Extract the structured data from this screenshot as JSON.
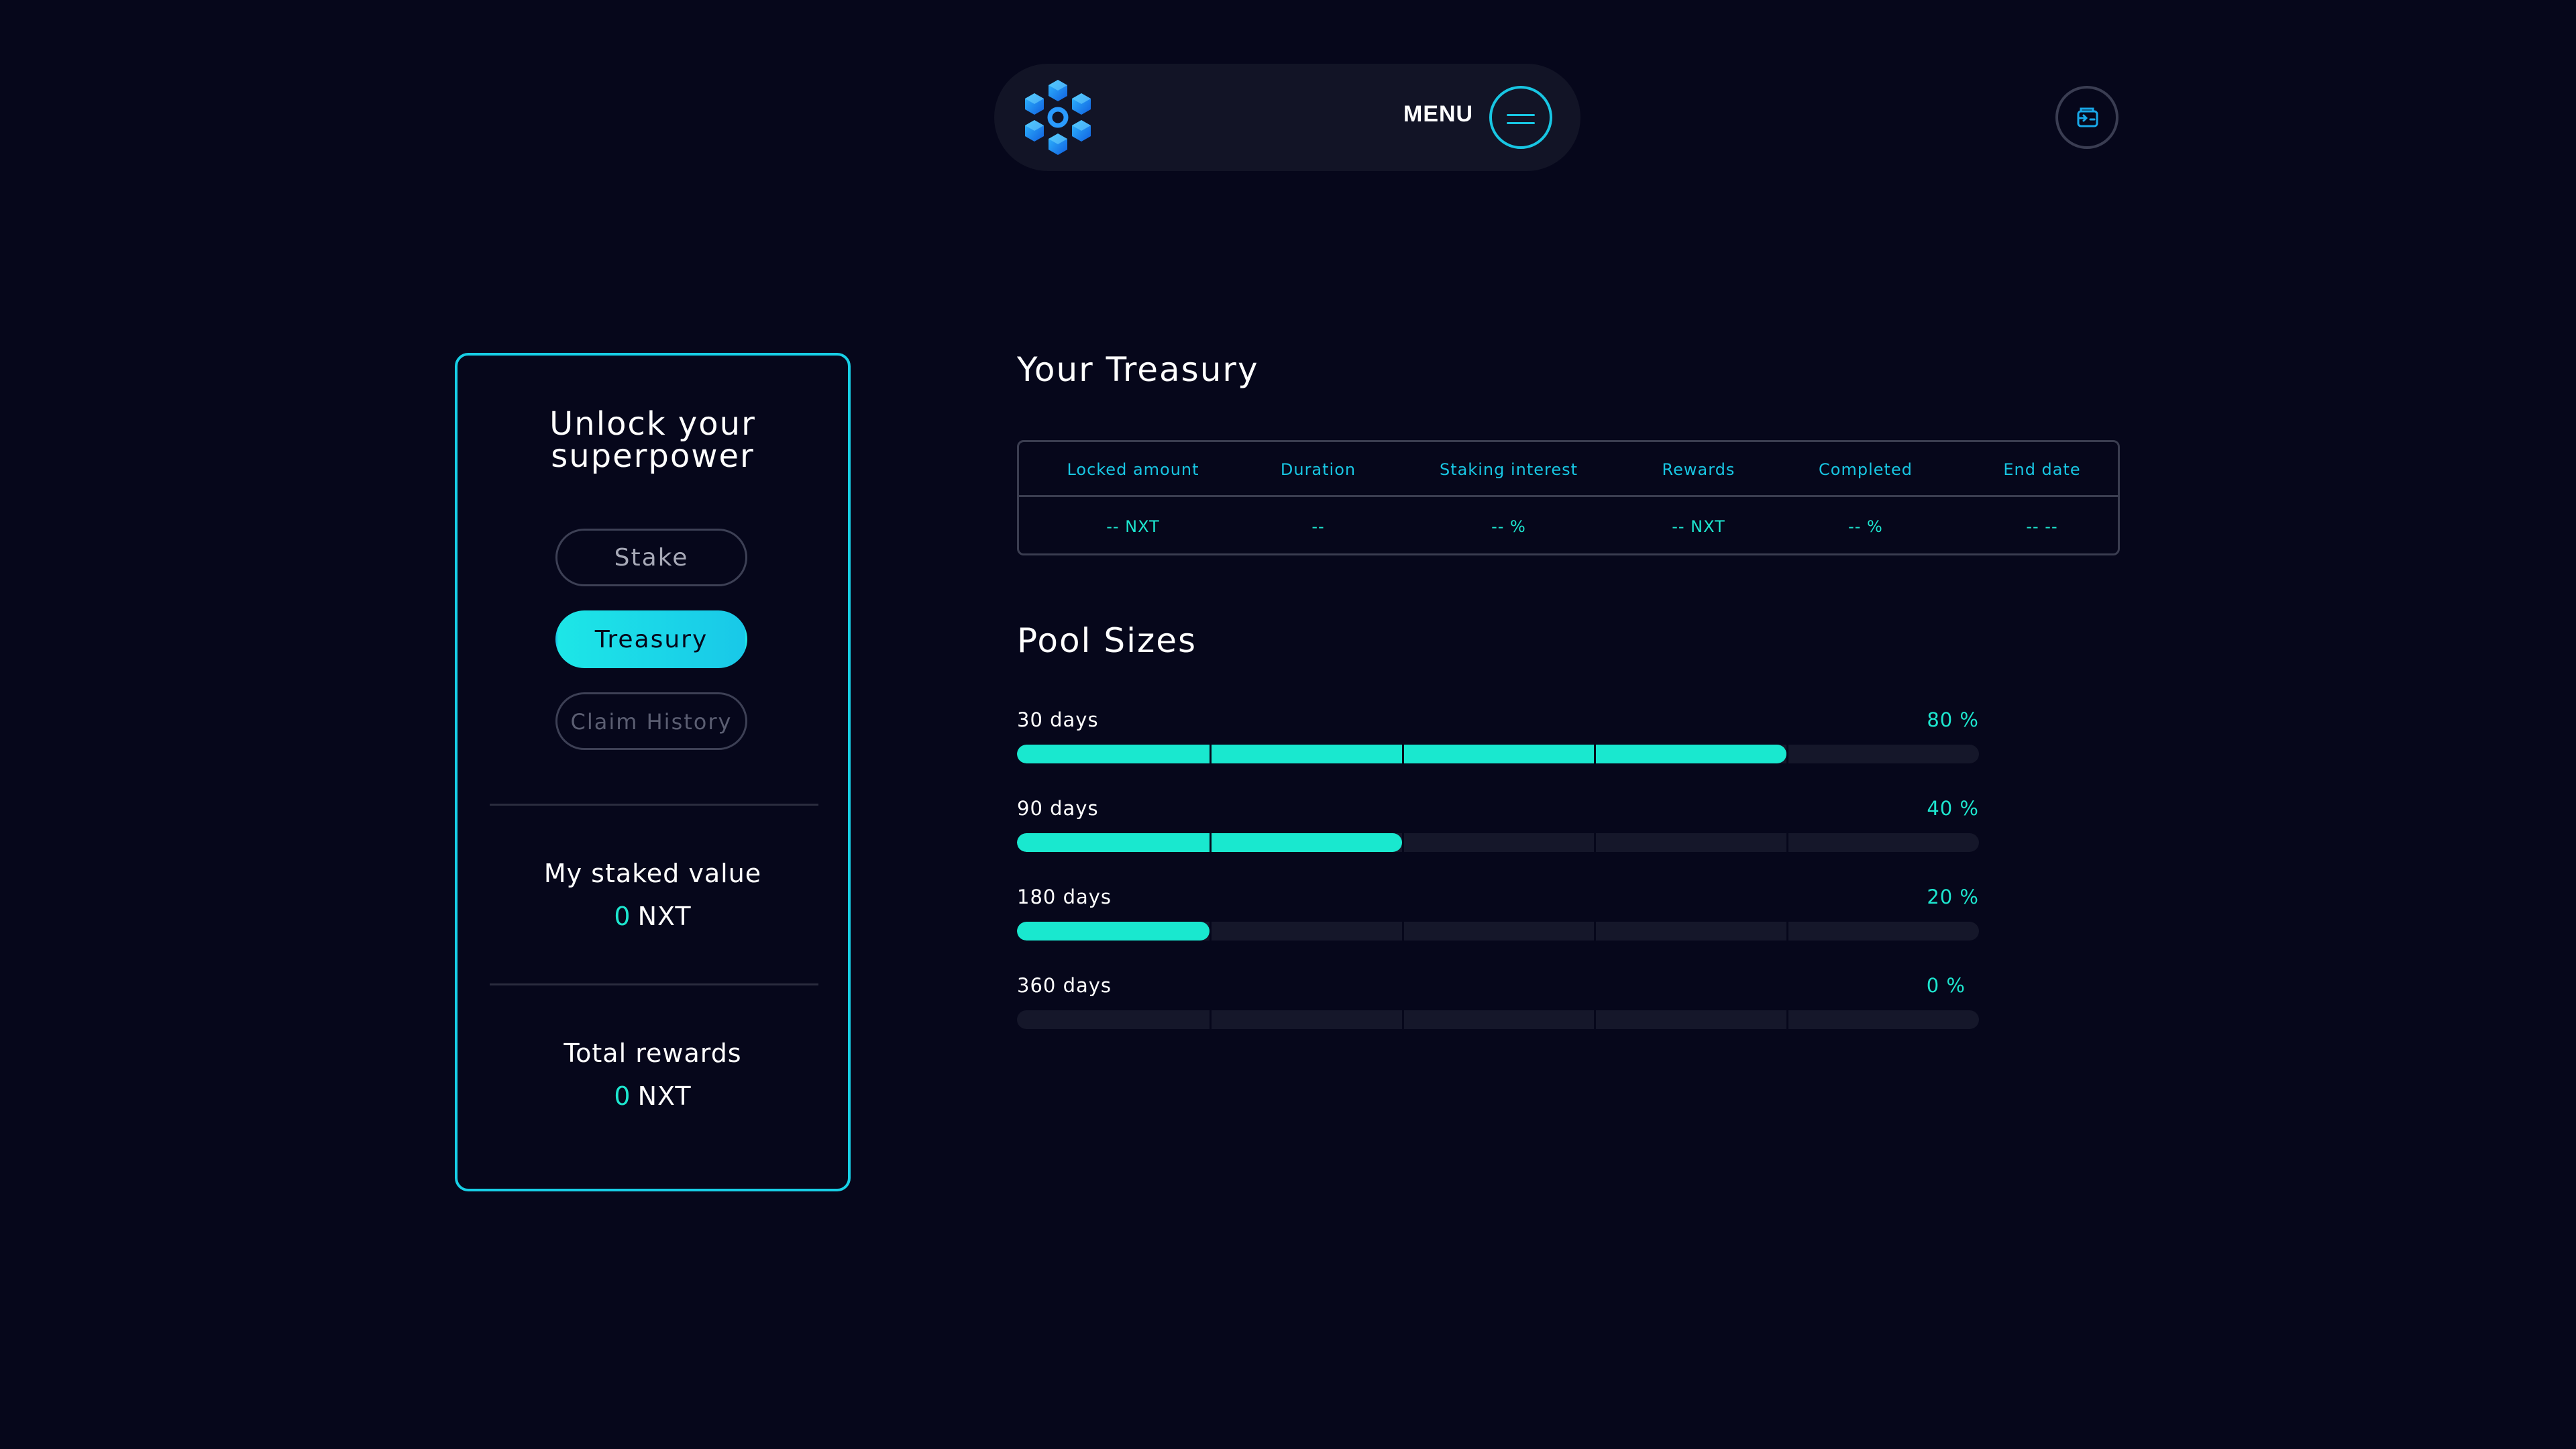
{
  "header": {
    "logo_icon": "hexagon-cubes-logo-icon",
    "menu_label": "MENU",
    "menu_icon": "hamburger-icon",
    "wallet_icon": "wallet-icon"
  },
  "sidebar": {
    "title": "Unlock your\nsuperpower",
    "buttons": {
      "stake": "Stake",
      "treasury": "Treasury",
      "claim_history": "Claim History"
    },
    "active_button": "treasury",
    "staked": {
      "label": "My staked value",
      "value": "0",
      "unit": "NXT"
    },
    "rewards": {
      "label": "Total rewards",
      "value": "0",
      "unit": "NXT"
    }
  },
  "treasury": {
    "title": "Your Treasury",
    "columns": [
      "Locked amount",
      "Duration",
      "Staking interest",
      "Rewards",
      "Completed",
      "End date"
    ],
    "row": [
      "-- NXT",
      "--",
      "-- %",
      "-- NXT",
      "-- %",
      "-- --"
    ]
  },
  "pools": {
    "title": "Pool Sizes",
    "items": [
      {
        "label": "30 days",
        "percent_text": "80 %",
        "percent": 80
      },
      {
        "label": "90 days",
        "percent_text": "40 %",
        "percent": 40
      },
      {
        "label": "180 days",
        "percent_text": "20 %",
        "percent": 20
      },
      {
        "label": "360 days",
        "percent_text": "0 %",
        "percent": 0
      }
    ]
  },
  "colors": {
    "background": "#06071b",
    "accent_cyan": "#18c6e3",
    "accent_teal": "#1de6cf",
    "panel": "#121426"
  }
}
